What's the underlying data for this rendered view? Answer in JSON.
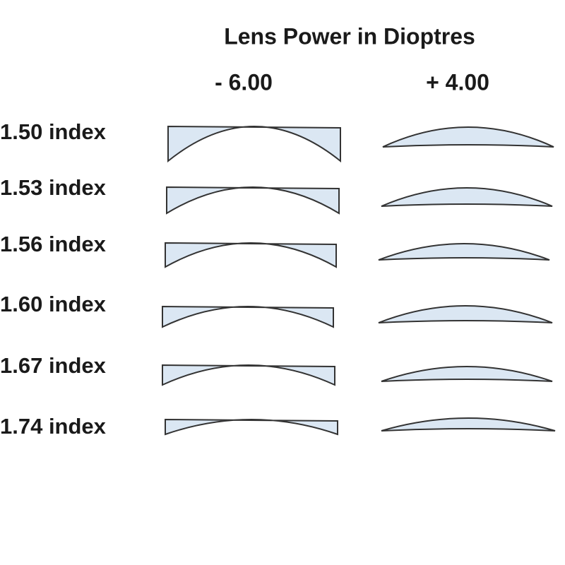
{
  "title": "Lens Power in Dioptres",
  "columns": [
    "- 6.00",
    "+ 4.00"
  ],
  "rows": [
    "1.50 index",
    "1.53 index",
    "1.56 index",
    "1.60 index",
    "1.67 index",
    "1.74 index"
  ]
}
